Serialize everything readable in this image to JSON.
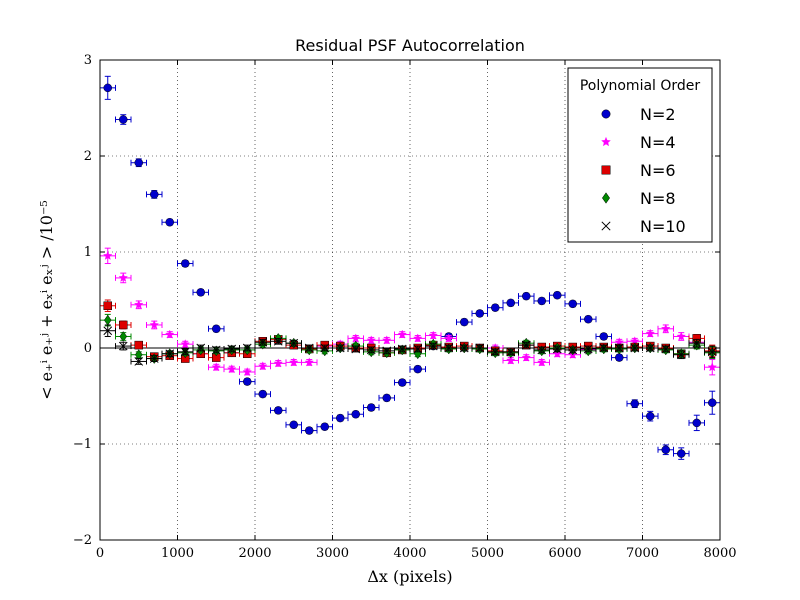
{
  "chart_data": {
    "type": "scatter",
    "title": "Residual PSF Autocorrelation",
    "xlabel": "Δx (pixels)",
    "ylabel": "< e₊ⁱ e₊ʲ + eₓⁱ eₓʲ > /10⁻⁵",
    "xlim": [
      0,
      8000
    ],
    "ylim": [
      -2,
      3
    ],
    "xticks": [
      0,
      1000,
      2000,
      3000,
      4000,
      5000,
      6000,
      7000,
      8000
    ],
    "xtick_labels": [
      "0",
      "1000",
      "2000",
      "3000",
      "4000",
      "5000",
      "6000",
      "7000",
      "8000"
    ],
    "yticks": [
      -2,
      -1,
      0,
      1,
      2,
      3
    ],
    "ytick_labels": [
      "−2",
      "−1",
      "0",
      "1",
      "2",
      "3"
    ],
    "grid": true,
    "x_error": 100,
    "legend": {
      "title": "Polynomial Order",
      "position": "top-right"
    },
    "x": [
      100,
      300,
      500,
      700,
      900,
      1100,
      1300,
      1500,
      1700,
      1900,
      2100,
      2300,
      2500,
      2700,
      2900,
      3100,
      3300,
      3500,
      3700,
      3900,
      4100,
      4300,
      4500,
      4700,
      4900,
      5100,
      5300,
      5500,
      5700,
      5900,
      6100,
      6300,
      6500,
      6700,
      6900,
      7100,
      7300,
      7500,
      7700,
      7900
    ],
    "series": [
      {
        "name": "N=2",
        "marker": "circle",
        "color": "#0000cc",
        "values": [
          2.71,
          2.38,
          1.93,
          1.6,
          1.31,
          0.88,
          0.58,
          0.2,
          -0.05,
          -0.35,
          -0.48,
          -0.65,
          -0.8,
          -0.86,
          -0.82,
          -0.73,
          -0.69,
          -0.62,
          -0.52,
          -0.36,
          -0.22,
          0.02,
          0.12,
          0.27,
          0.36,
          0.42,
          0.47,
          0.54,
          0.49,
          0.55,
          0.46,
          0.3,
          0.12,
          -0.1,
          -0.58,
          -0.71,
          -1.06,
          -1.1,
          -0.78,
          -0.57
        ],
        "errors": [
          0.12,
          0.05,
          0.04,
          0.04,
          0.03,
          0.03,
          0.03,
          0.03,
          0.03,
          0.03,
          0.03,
          0.03,
          0.03,
          0.03,
          0.03,
          0.03,
          0.03,
          0.03,
          0.03,
          0.03,
          0.03,
          0.03,
          0.03,
          0.03,
          0.03,
          0.03,
          0.03,
          0.03,
          0.03,
          0.03,
          0.03,
          0.03,
          0.03,
          0.03,
          0.04,
          0.05,
          0.05,
          0.06,
          0.08,
          0.12
        ]
      },
      {
        "name": "N=4",
        "marker": "star",
        "color": "#ff00ff",
        "values": [
          0.96,
          0.73,
          0.45,
          0.24,
          0.14,
          0.04,
          -0.06,
          -0.2,
          -0.22,
          -0.25,
          -0.19,
          -0.16,
          -0.15,
          -0.15,
          0.02,
          0.04,
          0.1,
          0.08,
          0.08,
          0.14,
          0.1,
          0.13,
          0.1,
          0.0,
          0.0,
          0.0,
          -0.13,
          -0.1,
          -0.15,
          -0.06,
          -0.07,
          -0.02,
          0.0,
          0.06,
          0.07,
          0.15,
          0.2,
          0.12,
          0.06,
          -0.2
        ],
        "errors": [
          0.08,
          0.05,
          0.04,
          0.04,
          0.03,
          0.03,
          0.03,
          0.03,
          0.03,
          0.03,
          0.03,
          0.03,
          0.03,
          0.03,
          0.03,
          0.03,
          0.03,
          0.03,
          0.03,
          0.03,
          0.03,
          0.03,
          0.03,
          0.03,
          0.03,
          0.03,
          0.03,
          0.03,
          0.03,
          0.03,
          0.03,
          0.03,
          0.03,
          0.03,
          0.03,
          0.03,
          0.04,
          0.04,
          0.05,
          0.08
        ]
      },
      {
        "name": "N=6",
        "marker": "square",
        "color": "#dd0000",
        "values": [
          0.44,
          0.24,
          0.03,
          -0.09,
          -0.08,
          -0.11,
          -0.06,
          -0.1,
          -0.05,
          -0.06,
          0.07,
          0.09,
          0.03,
          -0.01,
          0.03,
          0.02,
          0.0,
          0.0,
          -0.05,
          -0.02,
          0.0,
          0.03,
          0.01,
          0.02,
          0.0,
          -0.03,
          -0.04,
          0.03,
          0.01,
          0.02,
          0.01,
          0.02,
          0.01,
          0.0,
          0.01,
          0.02,
          0.0,
          -0.06,
          0.1,
          -0.03
        ],
        "errors": [
          0.06,
          0.04,
          0.03,
          0.03,
          0.03,
          0.03,
          0.03,
          0.03,
          0.03,
          0.03,
          0.03,
          0.03,
          0.03,
          0.03,
          0.03,
          0.03,
          0.03,
          0.03,
          0.03,
          0.03,
          0.03,
          0.03,
          0.03,
          0.03,
          0.03,
          0.03,
          0.03,
          0.03,
          0.03,
          0.03,
          0.03,
          0.03,
          0.03,
          0.03,
          0.03,
          0.03,
          0.03,
          0.04,
          0.04,
          0.06
        ]
      },
      {
        "name": "N=8",
        "marker": "diamond",
        "color": "#008800",
        "values": [
          0.29,
          0.12,
          -0.07,
          -0.11,
          -0.06,
          -0.05,
          -0.02,
          -0.03,
          -0.02,
          -0.02,
          0.04,
          0.1,
          0.05,
          -0.02,
          -0.03,
          0.0,
          0.02,
          -0.04,
          -0.05,
          -0.02,
          -0.06,
          0.04,
          -0.01,
          0.0,
          -0.01,
          -0.05,
          -0.05,
          0.05,
          -0.03,
          0.0,
          -0.02,
          -0.03,
          -0.01,
          -0.01,
          0.0,
          0.0,
          -0.02,
          -0.06,
          0.03,
          -0.05
        ],
        "errors": [
          0.06,
          0.04,
          0.03,
          0.03,
          0.03,
          0.03,
          0.03,
          0.03,
          0.03,
          0.03,
          0.03,
          0.03,
          0.03,
          0.03,
          0.03,
          0.03,
          0.03,
          0.03,
          0.03,
          0.03,
          0.03,
          0.03,
          0.03,
          0.03,
          0.03,
          0.03,
          0.03,
          0.03,
          0.03,
          0.03,
          0.03,
          0.03,
          0.03,
          0.03,
          0.03,
          0.03,
          0.03,
          0.04,
          0.04,
          0.06
        ]
      },
      {
        "name": "N=10",
        "marker": "x",
        "color": "#000000",
        "values": [
          0.18,
          0.02,
          -0.14,
          -0.11,
          -0.06,
          -0.04,
          0.0,
          -0.02,
          -0.01,
          0.0,
          0.06,
          0.07,
          0.05,
          0.0,
          0.0,
          0.0,
          -0.01,
          -0.02,
          -0.03,
          -0.01,
          -0.01,
          0.02,
          0.0,
          0.0,
          0.0,
          -0.04,
          -0.04,
          0.03,
          -0.02,
          -0.01,
          -0.02,
          -0.01,
          0.0,
          0.0,
          0.0,
          0.0,
          -0.01,
          -0.07,
          0.05,
          -0.04
        ],
        "errors": [
          0.06,
          0.04,
          0.03,
          0.03,
          0.03,
          0.03,
          0.03,
          0.03,
          0.03,
          0.03,
          0.03,
          0.03,
          0.03,
          0.03,
          0.03,
          0.03,
          0.03,
          0.03,
          0.03,
          0.03,
          0.03,
          0.03,
          0.03,
          0.03,
          0.03,
          0.03,
          0.03,
          0.03,
          0.03,
          0.03,
          0.03,
          0.03,
          0.03,
          0.03,
          0.03,
          0.03,
          0.03,
          0.04,
          0.04,
          0.06
        ]
      }
    ]
  }
}
